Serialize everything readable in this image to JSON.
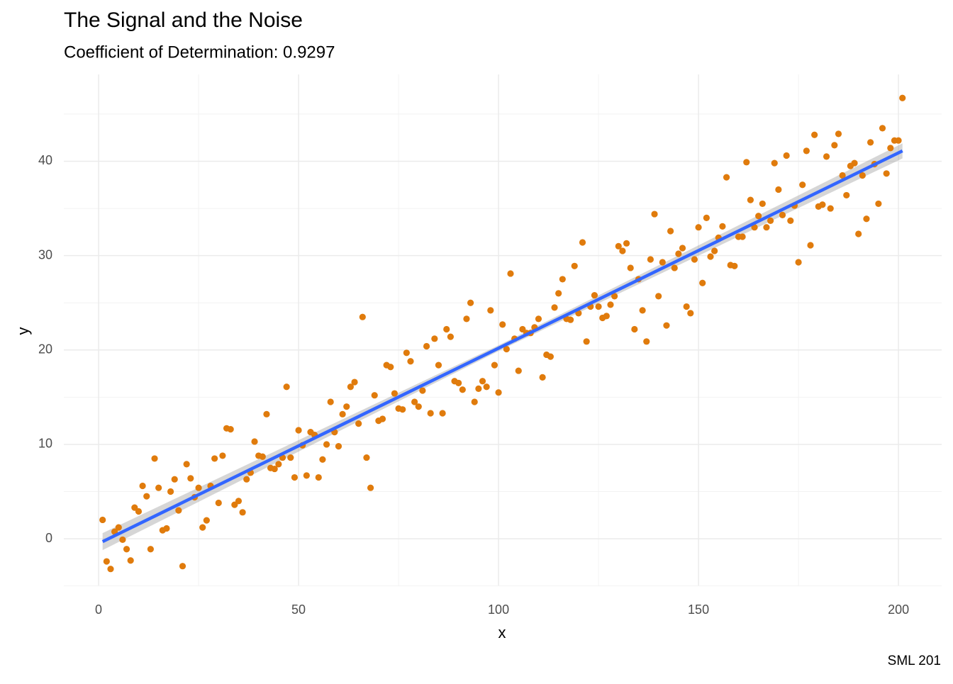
{
  "chart_data": {
    "type": "scatter",
    "title": "The Signal and the Noise",
    "subtitle": "Coefficient of Determination: 0.9297",
    "x_label": "x",
    "y_label": "y",
    "caption": "SML 201",
    "color": "#e07b0c",
    "x": [
      1,
      2,
      3,
      4,
      5,
      6,
      7,
      8,
      9,
      10,
      11,
      12,
      13,
      14,
      15,
      16,
      17,
      18,
      19,
      20,
      21,
      22,
      23,
      24,
      25,
      26,
      27,
      28,
      29,
      30,
      31,
      32,
      33,
      34,
      35,
      36,
      37,
      38,
      39,
      40,
      41,
      42,
      43,
      44,
      45,
      46,
      47,
      48,
      49,
      50,
      51,
      52,
      53,
      54,
      55,
      56,
      57,
      58,
      59,
      60,
      61,
      62,
      63,
      64,
      65,
      66,
      67,
      68,
      69,
      70,
      71,
      72,
      73,
      74,
      75,
      76,
      77,
      78,
      79,
      80,
      81,
      82,
      83,
      84,
      85,
      86,
      87,
      88,
      89,
      90,
      91,
      92,
      93,
      94,
      95,
      96,
      97,
      98,
      99,
      100,
      101,
      102,
      103,
      104,
      105,
      106,
      107,
      108,
      109,
      110,
      111,
      112,
      113,
      114,
      115,
      116,
      117,
      118,
      119,
      120,
      121,
      122,
      123,
      124,
      125,
      126,
      127,
      128,
      129,
      130,
      131,
      132,
      133,
      134,
      135,
      136,
      137,
      138,
      139,
      140,
      141,
      142,
      143,
      144,
      145,
      146,
      147,
      148,
      149,
      150,
      151,
      152,
      153,
      154,
      155,
      156,
      157,
      158,
      159,
      160,
      161,
      162,
      163,
      164,
      165,
      166,
      167,
      168,
      169,
      170,
      171,
      172,
      173,
      174,
      175,
      176,
      177,
      178,
      179,
      180,
      181,
      182,
      183,
      184,
      185,
      186,
      187,
      188,
      189,
      190,
      191,
      192,
      193,
      194,
      195,
      196,
      197,
      198,
      199,
      200,
      201
    ],
    "values": [
      2.0,
      -2.4,
      -3.2,
      0.75,
      1.2,
      -0.1,
      -1.1,
      -2.3,
      3.3,
      2.9,
      5.6,
      4.5,
      -1.1,
      8.5,
      5.4,
      0.9,
      1.1,
      5.0,
      6.3,
      3.0,
      -2.9,
      7.9,
      6.4,
      4.4,
      5.4,
      1.2,
      1.95,
      5.6,
      8.5,
      3.8,
      8.8,
      11.7,
      11.6,
      3.6,
      4.0,
      2.8,
      6.3,
      7.0,
      10.3,
      8.8,
      8.7,
      13.2,
      7.5,
      7.4,
      7.9,
      8.6,
      16.1,
      8.6,
      6.5,
      11.5,
      9.9,
      6.7,
      11.3,
      11.0,
      6.5,
      8.4,
      10.0,
      14.5,
      11.3,
      9.8,
      13.2,
      14.0,
      16.1,
      16.6,
      12.2,
      23.5,
      8.6,
      5.4,
      15.2,
      12.5,
      12.7,
      18.4,
      18.2,
      15.4,
      13.8,
      13.7,
      19.7,
      18.8,
      14.5,
      14.0,
      15.7,
      20.4,
      13.3,
      21.2,
      18.4,
      13.3,
      22.2,
      21.4,
      16.7,
      16.5,
      15.8,
      23.3,
      25.0,
      14.5,
      15.9,
      16.7,
      16.1,
      24.2,
      18.4,
      15.5,
      22.7,
      20.1,
      28.1,
      21.2,
      17.8,
      22.2,
      21.8,
      21.8,
      22.4,
      23.3,
      17.1,
      19.5,
      19.3,
      24.5,
      26.0,
      27.5,
      23.3,
      23.2,
      28.9,
      23.9,
      31.4,
      20.9,
      24.6,
      25.8,
      24.6,
      23.4,
      23.6,
      24.8,
      25.7,
      31.0,
      30.5,
      31.3,
      28.7,
      22.2,
      27.5,
      24.2,
      20.9,
      29.6,
      34.4,
      25.7,
      29.3,
      22.6,
      32.6,
      28.7,
      30.2,
      30.8,
      24.6,
      23.9,
      29.6,
      33.0,
      27.1,
      34.0,
      29.9,
      30.5,
      31.9,
      33.1,
      38.3,
      29.0,
      28.9,
      32.0,
      32.0,
      39.9,
      35.9,
      33.0,
      34.2,
      35.5,
      33.0,
      33.7,
      39.8,
      37.0,
      34.3,
      40.6,
      33.7,
      35.3,
      29.3,
      37.5,
      41.1,
      31.1,
      42.8,
      35.2,
      35.4,
      40.5,
      35.0,
      41.7,
      42.9,
      38.5,
      36.4,
      39.5,
      39.8,
      32.3,
      38.5,
      33.9,
      42.0,
      39.7,
      35.5,
      43.5,
      38.7,
      41.4,
      42.2,
      42.2,
      46.7
    ],
    "trend_line": {
      "color": "#3366ff",
      "x": [
        1,
        201
      ],
      "values": [
        -0.3,
        41.1
      ]
    },
    "band": {
      "color": "#999999",
      "x": [
        1,
        101,
        201
      ],
      "lower": [
        -1.2,
        20.1,
        40.3
      ],
      "upper": [
        0.6,
        20.7,
        41.9
      ]
    },
    "xlim": [
      -8.7,
      210.8
    ],
    "ylim": [
      -4.95,
      49.2
    ],
    "xticks": [
      0,
      50,
      100,
      150,
      200
    ],
    "yticks": [
      0,
      10,
      20,
      30,
      40
    ],
    "x_minor_grid": [
      25,
      75,
      125,
      175
    ],
    "y_minor_grid": [
      -5,
      5,
      15,
      25,
      35,
      45
    ],
    "grid": true
  }
}
